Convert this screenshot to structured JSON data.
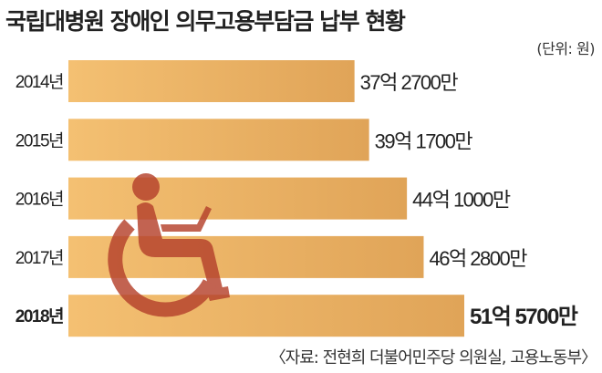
{
  "chart_data": {
    "type": "bar",
    "orientation": "horizontal",
    "title": "국립대병원 장애인 의무고용부담금 납부 현황",
    "unit": "(단위: 원)",
    "source": "〈자료: 전현희 더불어민주당 의원실, 고용노동부〉",
    "categories": [
      "2014년",
      "2015년",
      "2016년",
      "2017년",
      "2018년"
    ],
    "values": [
      3727000000,
      3917000000,
      4410000000,
      4628000000,
      5157000000
    ],
    "value_labels": [
      "37억 2700만",
      "39억 1700만",
      "44억 1000만",
      "46억 2800만",
      "51억 5700만"
    ],
    "highlight_index": 4,
    "xlim": [
      0,
      5157000000
    ],
    "colors": {
      "bar_start": "#f4c072",
      "bar_end": "#e0a458",
      "icon": "#b5412c"
    },
    "icon": "wheelchair-user-icon"
  }
}
